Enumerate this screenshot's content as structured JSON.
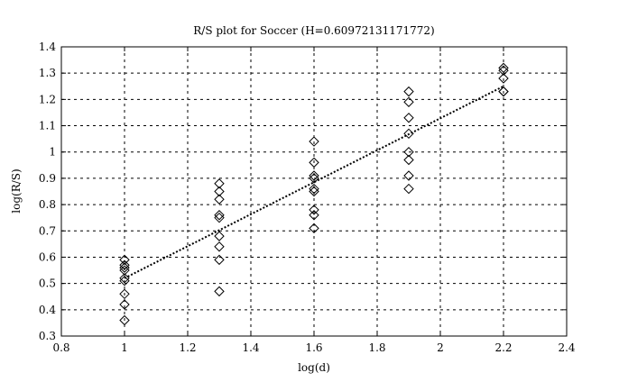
{
  "chart_data": {
    "type": "scatter",
    "title": "R/S plot for Soccer (H=0.60972131171772)",
    "xlabel": "log(d)",
    "ylabel": "log(R/S)",
    "xlim": [
      0.8,
      2.4
    ],
    "ylim": [
      0.3,
      1.4
    ],
    "xticks": [
      "0.8",
      "1",
      "1.2",
      "1.4",
      "1.6",
      "1.8",
      "2",
      "2.2",
      "2.4"
    ],
    "yticks": [
      "0.3",
      "0.4",
      "0.5",
      "0.6",
      "0.7",
      "0.8",
      "0.9",
      "1",
      "1.1",
      "1.2",
      "1.3",
      "1.4"
    ],
    "grid": true,
    "marker": "diamond",
    "points": [
      [
        1,
        0.59
      ],
      [
        1,
        0.57
      ],
      [
        1,
        0.56
      ],
      [
        1,
        0.55
      ],
      [
        1,
        0.52
      ],
      [
        1,
        0.51
      ],
      [
        1,
        0.46
      ],
      [
        1,
        0.42
      ],
      [
        1,
        0.36
      ],
      [
        1.3,
        0.88
      ],
      [
        1.3,
        0.85
      ],
      [
        1.3,
        0.82
      ],
      [
        1.3,
        0.76
      ],
      [
        1.3,
        0.75
      ],
      [
        1.3,
        0.68
      ],
      [
        1.3,
        0.64
      ],
      [
        1.3,
        0.59
      ],
      [
        1.3,
        0.47
      ],
      [
        1.6,
        1.04
      ],
      [
        1.6,
        0.96
      ],
      [
        1.6,
        0.91
      ],
      [
        1.6,
        0.9
      ],
      [
        1.6,
        0.86
      ],
      [
        1.6,
        0.85
      ],
      [
        1.6,
        0.78
      ],
      [
        1.6,
        0.76
      ],
      [
        1.6,
        0.71
      ],
      [
        1.9,
        1.23
      ],
      [
        1.9,
        1.19
      ],
      [
        1.9,
        1.13
      ],
      [
        1.9,
        1.07
      ],
      [
        1.9,
        1.0
      ],
      [
        1.9,
        0.97
      ],
      [
        1.9,
        0.91
      ],
      [
        1.9,
        0.86
      ],
      [
        2.2,
        1.32
      ],
      [
        2.2,
        1.31
      ],
      [
        2.2,
        1.28
      ],
      [
        2.2,
        1.23
      ],
      [
        2.2,
        1.23
      ]
    ],
    "fit_line": {
      "style": "dotted",
      "from": [
        1,
        0.52
      ],
      "to": [
        2.2,
        1.25
      ]
    }
  }
}
